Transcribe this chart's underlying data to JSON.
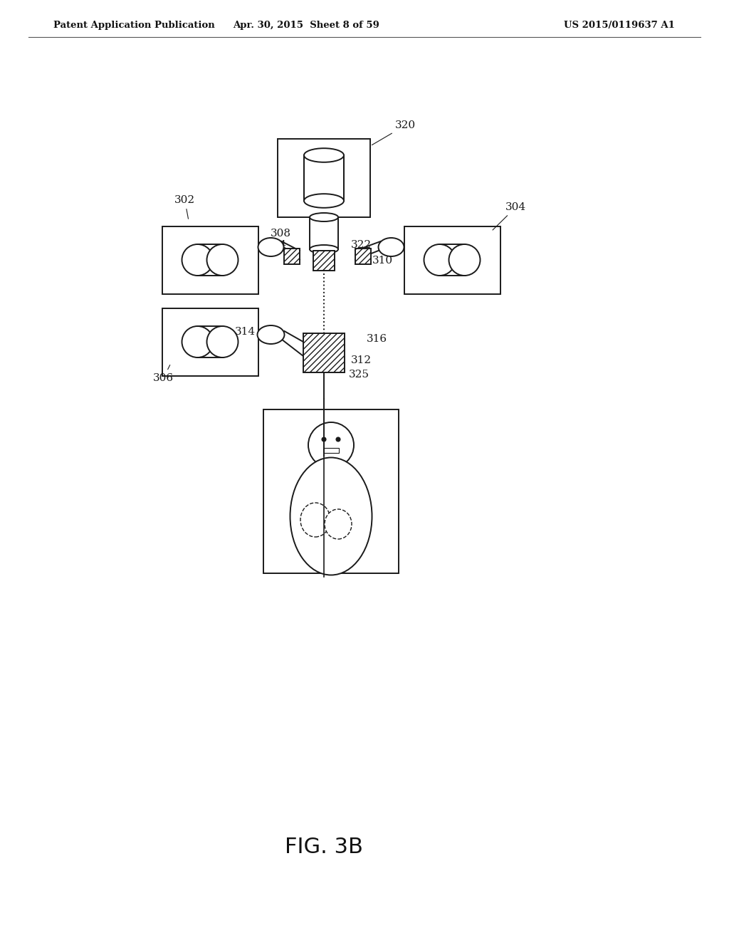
{
  "title": "FIG. 3B",
  "header_left": "Patent Application Publication",
  "header_mid": "Apr. 30, 2015  Sheet 8 of 59",
  "header_right": "US 2015/0119637 A1",
  "bg_color": "#ffffff",
  "line_color": "#1a1a1a",
  "label_fontsize": 11,
  "title_fontsize": 22,
  "lw": 1.4
}
